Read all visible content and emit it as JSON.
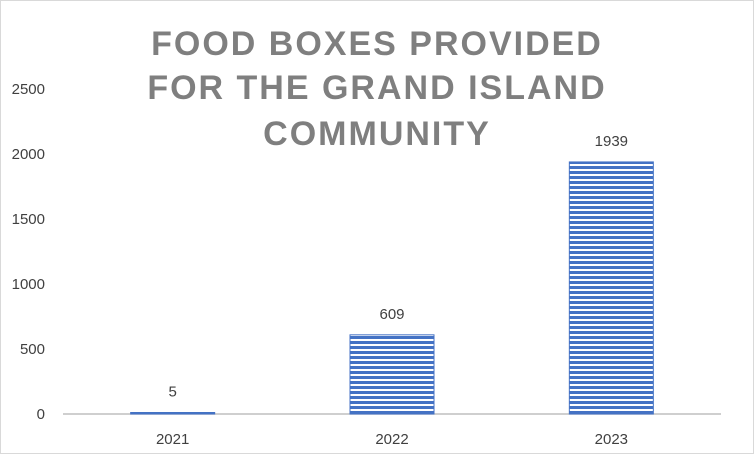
{
  "chart_data": {
    "type": "bar",
    "title_lines": [
      "FOOD BOXES PROVIDED",
      "FOR THE GRAND ISLAND",
      "COMMUNITY"
    ],
    "categories": [
      "2021",
      "2022",
      "2023"
    ],
    "values": [
      5,
      609,
      1939
    ],
    "data_labels": [
      "5",
      "609",
      "1939"
    ],
    "y_ticks": [
      "0",
      "500",
      "1000",
      "1500",
      "2000",
      "2500"
    ],
    "ylim": [
      0,
      2500
    ],
    "xlabel": "",
    "ylabel": "",
    "grid": false,
    "legend": "none",
    "colors": {
      "bar": "#4472c4",
      "bar_stripe": "#ffffff",
      "axis": "#bfbfbf",
      "title": "#7f7f7f"
    }
  }
}
